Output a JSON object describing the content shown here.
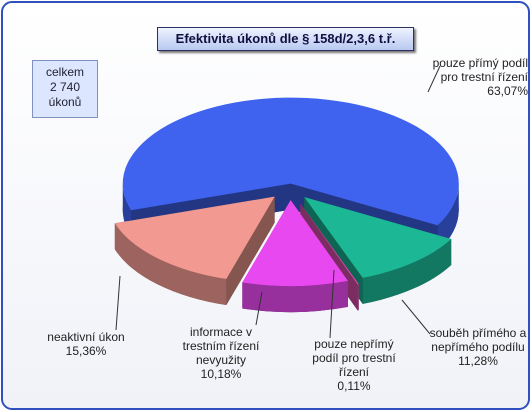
{
  "chart_data": {
    "type": "pie3d",
    "title": "Efektivita úkonů dle § 158d/2,3,6 t.ř.",
    "annotation": "celkem 2 740 úkonů",
    "categories": [
      "pouze přímý podíl pro trestní řízení",
      "souběh přímého a nepřímého podílu",
      "pouze nepřímý podíl pro trestní řízení",
      "informace v trestním řízení nevyužity",
      "neaktivní úkon"
    ],
    "values": [
      63.07,
      11.28,
      0.11,
      10.18,
      15.36
    ],
    "value_labels": [
      "63,07%",
      "11,28%",
      "0,11%",
      "10,18%",
      "15,36%"
    ],
    "colors": [
      "#3f63ee",
      "#1cb896",
      "#e050b0",
      "#e848f0",
      "#f29a92"
    ]
  }
}
